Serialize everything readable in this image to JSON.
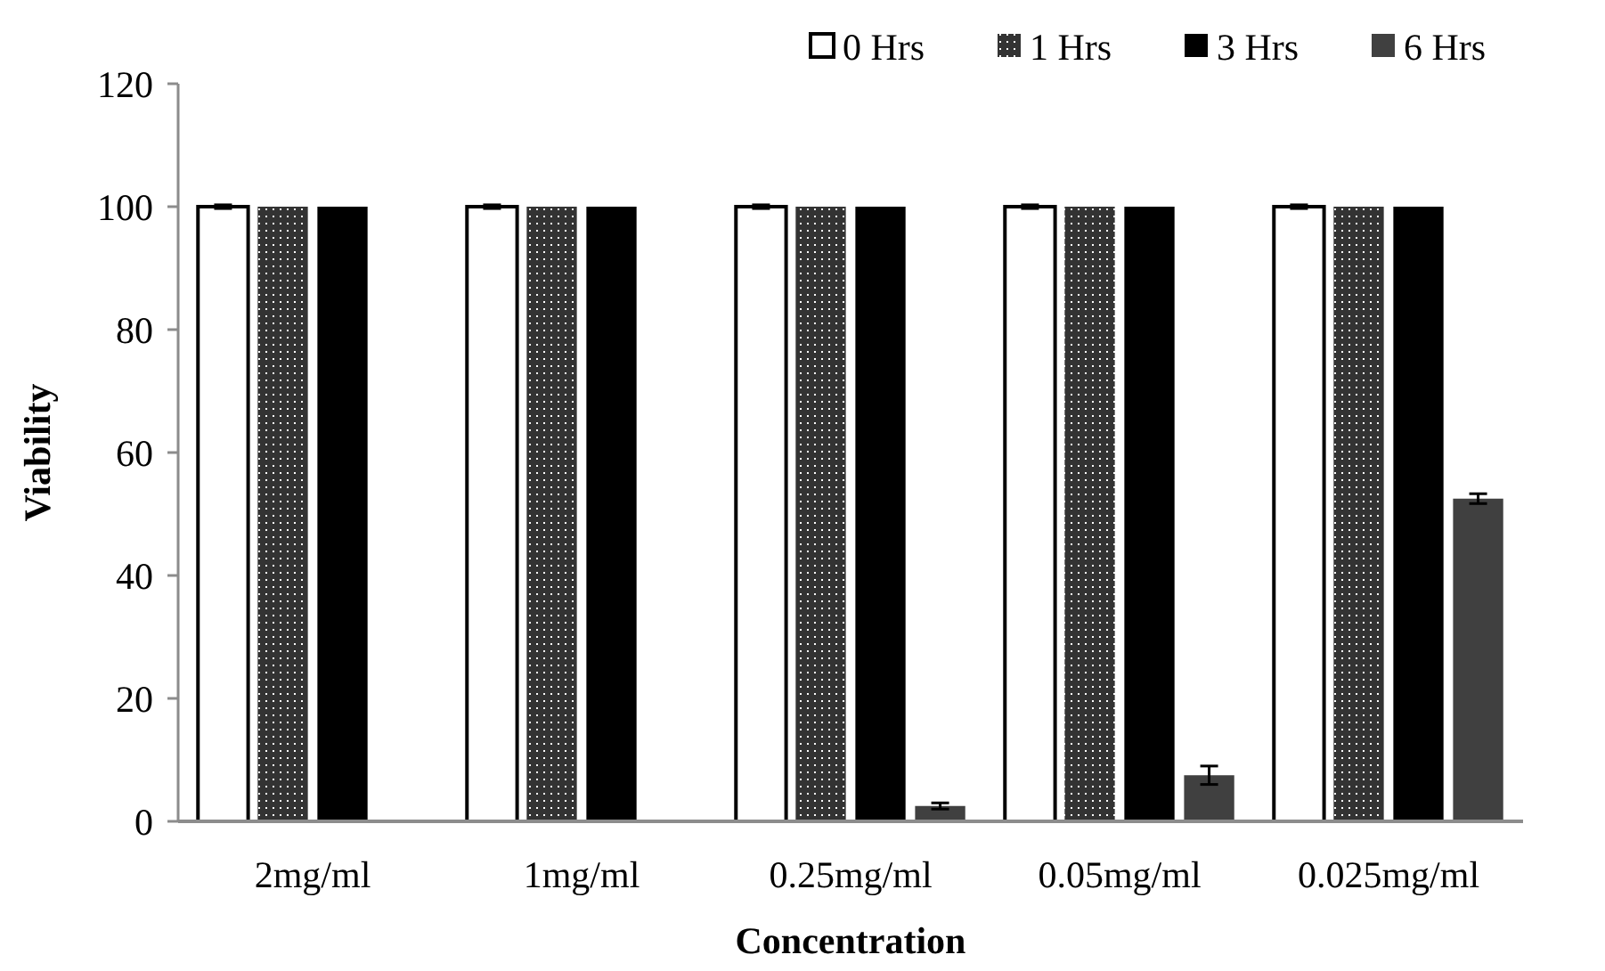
{
  "chart_data": {
    "type": "bar",
    "xlabel": "Concentration",
    "ylabel": "Viability",
    "categories": [
      "2mg/ml",
      "1mg/ml",
      "0.25mg/ml",
      "0.05mg/ml",
      "0.025mg/ml"
    ],
    "series": [
      {
        "name": "0 Hrs",
        "color": "#ffffff",
        "values": [
          100,
          100,
          100,
          100,
          100
        ],
        "errors": [
          0.3,
          0.3,
          0.3,
          0.3,
          0.3
        ]
      },
      {
        "name": "1 Hrs",
        "color": "#333333",
        "values": [
          100,
          100,
          100,
          100,
          100
        ]
      },
      {
        "name": "3 Hrs",
        "color": "#000000",
        "values": [
          100,
          100,
          100,
          100,
          100
        ]
      },
      {
        "name": "6 Hrs",
        "color": "#404040",
        "values": [
          0,
          0,
          2.5,
          7.5,
          52.5
        ],
        "errors": [
          null,
          null,
          0.5,
          1.5,
          0.8
        ]
      }
    ],
    "ylim": [
      0,
      120
    ],
    "yticks": [
      0,
      20,
      40,
      60,
      80,
      100,
      120
    ],
    "grid": false,
    "legend": "top right"
  }
}
